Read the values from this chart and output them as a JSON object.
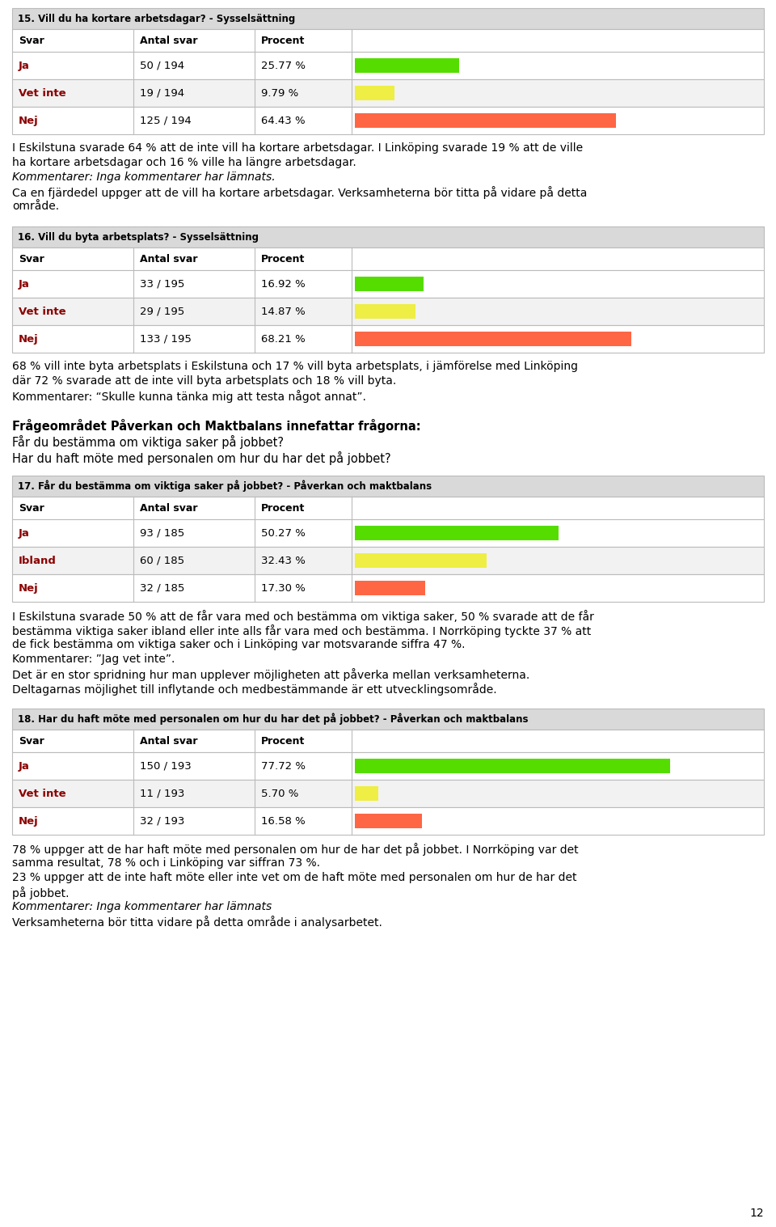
{
  "page_bg": "#ffffff",
  "table_header_bg": "#d9d9d9",
  "table_row_bg_odd": "#ffffff",
  "table_row_bg_even": "#f2f2f2",
  "table_border": "#bbbbbb",
  "label_color": "#8b0000",
  "text_color": "#000000",
  "bar_green": "#55dd00",
  "bar_yellow": "#eeee44",
  "bar_red": "#ff6644",
  "sections": [
    {
      "type": "table",
      "title": "15. Vill du ha kortare arbetsdagar? - Sysselsättning",
      "rows": [
        {
          "svar": "Ja",
          "antal": "50 / 194",
          "procent": "25.77 %",
          "bar_pct": 25.77,
          "bar_color": "#55dd00"
        },
        {
          "svar": "Vet inte",
          "antal": "19 / 194",
          "procent": "9.79 %",
          "bar_pct": 9.79,
          "bar_color": "#eeee44"
        },
        {
          "svar": "Nej",
          "antal": "125 / 194",
          "procent": "64.43 %",
          "bar_pct": 64.43,
          "bar_color": "#ff6644"
        }
      ],
      "body_lines": [
        {
          "text": "I Eskilstuna svarade 64 % att de inte vill ha kortare arbetsdagar. I Linköping svarade 19 % att de ville",
          "italic": false,
          "bold": false
        },
        {
          "text": "ha kortare arbetsdagar och 16 % ville ha längre arbetsdagar.",
          "italic": false,
          "bold": false
        },
        {
          "text": "Kommentarer: Inga kommentarer har lämnats.",
          "italic": true,
          "bold": false
        },
        {
          "text": "Ca en fjärdedel uppger att de vill ha kortare arbetsdagar. Verksamheterna bör titta på vidare på detta",
          "italic": false,
          "bold": false
        },
        {
          "text": "område.",
          "italic": false,
          "bold": false
        }
      ]
    },
    {
      "type": "table",
      "title": "16. Vill du byta arbetsplats? - Sysselsättning",
      "rows": [
        {
          "svar": "Ja",
          "antal": "33 / 195",
          "procent": "16.92 %",
          "bar_pct": 16.92,
          "bar_color": "#55dd00"
        },
        {
          "svar": "Vet inte",
          "antal": "29 / 195",
          "procent": "14.87 %",
          "bar_pct": 14.87,
          "bar_color": "#eeee44"
        },
        {
          "svar": "Nej",
          "antal": "133 / 195",
          "procent": "68.21 %",
          "bar_pct": 68.21,
          "bar_color": "#ff6644"
        }
      ],
      "body_lines": [
        {
          "text": "68 % vill inte byta arbetsplats i Eskilstuna och 17 % vill byta arbetsplats, i jämförelse med Linköping",
          "italic": false,
          "bold": false
        },
        {
          "text": "där 72 % svarade att de inte vill byta arbetsplats och 18 % vill byta.",
          "italic": false,
          "bold": false
        },
        {
          "text": "Kommentarer: “Skulle kunna tänka mig att testa något annat”.",
          "italic": false,
          "bold": false
        }
      ]
    },
    {
      "type": "special",
      "bold_line": "Frågeområdet Påverkan och Maktbalans innefattar frågorna:",
      "normal_lines": [
        "Får du bestämma om viktiga saker på jobbet?",
        "Har du haft möte med personalen om hur du har det på jobbet?"
      ]
    },
    {
      "type": "table",
      "title": "17. Får du bestämma om viktiga saker på jobbet? - Påverkan och maktbalans",
      "rows": [
        {
          "svar": "Ja",
          "antal": "93 / 185",
          "procent": "50.27 %",
          "bar_pct": 50.27,
          "bar_color": "#55dd00"
        },
        {
          "svar": "Ibland",
          "antal": "60 / 185",
          "procent": "32.43 %",
          "bar_pct": 32.43,
          "bar_color": "#eeee44"
        },
        {
          "svar": "Nej",
          "antal": "32 / 185",
          "procent": "17.30 %",
          "bar_pct": 17.3,
          "bar_color": "#ff6644"
        }
      ],
      "body_lines": [
        {
          "text": "I Eskilstuna svarade 50 % att de får vara med och bestämma om viktiga saker, 50 % svarade att de får",
          "italic": false,
          "bold": false
        },
        {
          "text": "bestämma viktiga saker ibland eller inte alls får vara med och bestämma. I Norrköping tyckte 37 % att",
          "italic": false,
          "bold": false
        },
        {
          "text": "de fick bestämma om viktiga saker och i Linköping var motsvarande siffra 47 %.",
          "italic": false,
          "bold": false
        },
        {
          "text": "Kommentarer: ”Jag vet inte”.",
          "italic": false,
          "bold": false
        },
        {
          "text": "Det är en stor spridning hur man upplever möjligheten att påverka mellan verksamheterna.",
          "italic": false,
          "bold": false
        },
        {
          "text": "Deltagarnas möjlighet till inflytande och medbestämmande är ett utvecklingsområde.",
          "italic": false,
          "bold": false
        }
      ]
    },
    {
      "type": "table",
      "title": "18. Har du haft möte med personalen om hur du har det på jobbet? - Påverkan och maktbalans",
      "rows": [
        {
          "svar": "Ja",
          "antal": "150 / 193",
          "procent": "77.72 %",
          "bar_pct": 77.72,
          "bar_color": "#55dd00"
        },
        {
          "svar": "Vet inte",
          "antal": "11 / 193",
          "procent": "5.70 %",
          "bar_pct": 5.7,
          "bar_color": "#eeee44"
        },
        {
          "svar": "Nej",
          "antal": "32 / 193",
          "procent": "16.58 %",
          "bar_pct": 16.58,
          "bar_color": "#ff6644"
        }
      ],
      "body_lines": [
        {
          "text": "78 % uppger att de har haft möte med personalen om hur de har det på jobbet. I Norrköping var det",
          "italic": false,
          "bold": false
        },
        {
          "text": "samma resultat, 78 % och i Linköping var siffran 73 %.",
          "italic": false,
          "bold": false
        },
        {
          "text": "23 % uppger att de inte haft möte eller inte vet om de haft möte med personalen om hur de har det",
          "italic": false,
          "bold": false
        },
        {
          "text": "på jobbet.",
          "italic": false,
          "bold": false
        },
        {
          "text": "Kommentarer: Inga kommentarer har lämnats",
          "italic": true,
          "bold": false
        },
        {
          "text": "Verksamheterna bör titta vidare på detta område i analysarbetet.",
          "italic": false,
          "bold": false
        }
      ]
    }
  ],
  "page_number": "12"
}
